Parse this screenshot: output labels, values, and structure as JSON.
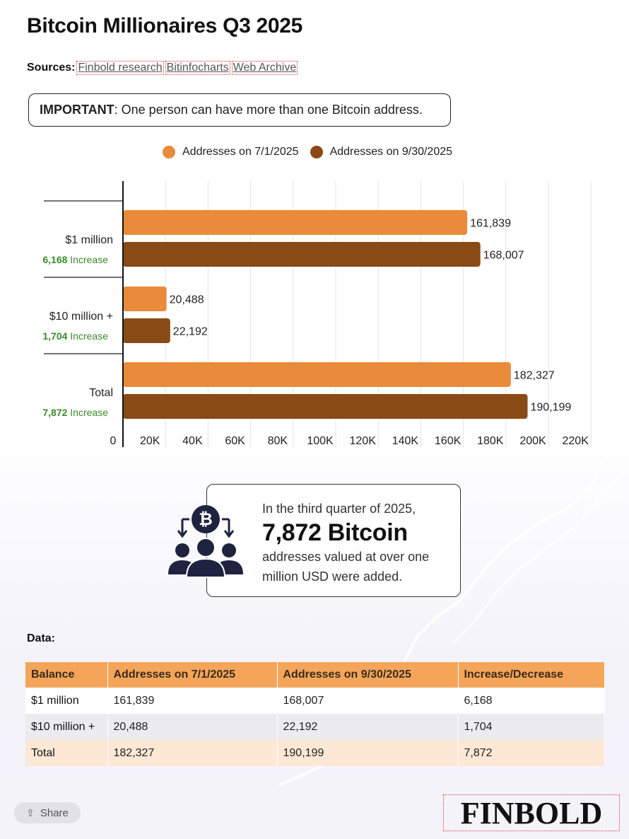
{
  "title": "Bitcoin Millionaires Q3 2025",
  "sources": {
    "label": "Sources:",
    "links": [
      "Finbold research",
      "Bitinfocharts",
      "Web Archive"
    ]
  },
  "important": {
    "label": "IMPORTANT",
    "text": ": One person can have more than one Bitcoin address."
  },
  "colors": {
    "series1": "#e98b3a",
    "series2": "#8a4a16",
    "increase_green": "#3a8a2a",
    "table_header": "#f5a55a"
  },
  "chart_data": {
    "type": "bar",
    "orientation": "horizontal",
    "categories": [
      "$1 million",
      "$10 million +",
      "Total"
    ],
    "category_notes": [
      {
        "value": "6,168",
        "suffix": "Increase"
      },
      {
        "value": "1,704",
        "suffix": "Increase"
      },
      {
        "value": "7,872",
        "suffix": "Increase"
      }
    ],
    "series": [
      {
        "name": "Addresses on 7/1/2025",
        "values": [
          161839,
          20488,
          182327
        ],
        "labels": [
          "161,839",
          "20,488",
          "182,327"
        ]
      },
      {
        "name": "Addresses on 9/30/2025",
        "values": [
          168007,
          22192,
          190199
        ],
        "labels": [
          "168,007",
          "22,192",
          "190,199"
        ]
      }
    ],
    "xlim": [
      0,
      220000
    ],
    "xticks": [
      0,
      20000,
      40000,
      60000,
      80000,
      100000,
      120000,
      140000,
      160000,
      180000,
      200000,
      220000
    ],
    "xtick_labels": [
      "0",
      "20K",
      "40K",
      "60K",
      "80K",
      "100K",
      "120K",
      "140K",
      "160K",
      "180K",
      "200K",
      "220K"
    ],
    "grid": true,
    "legend_position": "top"
  },
  "callout": {
    "line1": "In the third quarter of 2025,",
    "highlight": "7,872 Bitcoin",
    "line3": "addresses valued at over one million USD were added.",
    "icon": "bitcoin-group-icon"
  },
  "table": {
    "label": "Data:",
    "headers": [
      "Balance",
      "Addresses on 7/1/2025",
      "Addresses on 9/30/2025",
      "Increase/Decrease"
    ],
    "rows": [
      [
        "$1 million",
        "161,839",
        "168,007",
        "6,168"
      ],
      [
        "$10 million +",
        "20,488",
        "22,192",
        "1,704"
      ],
      [
        "Total",
        "182,327",
        "190,199",
        "7,872"
      ]
    ]
  },
  "share_label": "Share",
  "logo_text": "FINBOLD"
}
